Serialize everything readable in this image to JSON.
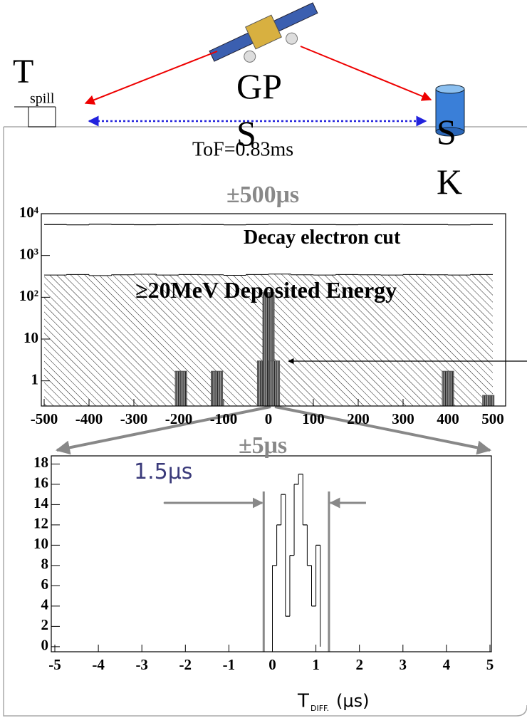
{
  "slide": {
    "t_label": "T",
    "t_subscript": "spill",
    "gps": "GPS",
    "sk": "SK",
    "tof": "ToF=0.83ms",
    "window_upper": "±500μs",
    "window_lower": "±5μs"
  },
  "chart_data": [
    {
      "type": "histogram",
      "log_y": true,
      "annotations": [
        "Decay electron cut",
        "≥20MeV Deposited Energy"
      ],
      "xlim": [
        -500,
        500
      ],
      "ylim": [
        0.25,
        10000
      ],
      "xticks": [
        -500,
        -400,
        -300,
        -200,
        -100,
        0,
        100,
        200,
        300,
        400,
        500
      ],
      "yticks": [
        1,
        10,
        {
          "value": 100,
          "label": "10²"
        },
        {
          "value": 1000,
          "label": "10³"
        },
        {
          "value": 10000,
          "label": "10⁴"
        }
      ],
      "series": [
        {
          "style": "line",
          "color": "#000000",
          "bins": [
            -500,
            -450,
            -400,
            -350,
            -300,
            -250,
            -200,
            -150,
            -100,
            -50,
            0,
            50,
            100,
            150,
            200,
            250,
            300,
            350,
            400,
            450,
            500
          ],
          "values": [
            5500,
            5400,
            5600,
            5500,
            5450,
            5500,
            5550,
            5500,
            5400,
            5500,
            5600,
            5500,
            5500,
            5450,
            5500,
            5550,
            5500,
            5500,
            5400,
            5500
          ]
        },
        {
          "style": "hatch",
          "color": "#000000",
          "bins": [
            -500,
            -450,
            -400,
            -350,
            -300,
            -250,
            -200,
            -150,
            -100,
            -50,
            0,
            50,
            100,
            150,
            200,
            250,
            300,
            350,
            400,
            450,
            500
          ],
          "values": [
            340,
            350,
            330,
            345,
            355,
            340,
            350,
            345,
            335,
            350,
            360,
            345,
            340,
            350,
            345,
            340,
            350,
            345,
            340,
            350
          ]
        },
        {
          "style": "bar",
          "color": "#555555",
          "x": [
            -195,
            -115,
            -12,
            0,
            12,
            400,
            490
          ],
          "values": [
            1.7,
            1.7,
            3,
            130,
            3,
            1.7,
            0.45
          ]
        }
      ]
    },
    {
      "type": "histogram",
      "log_y": false,
      "annotation": "1.5μs",
      "xlabel": "T",
      "xlabel_sub": "DIFF.",
      "xlabel_unit": "(μs)",
      "xlim": [
        -5,
        5
      ],
      "ylim": [
        -0.5,
        18.8
      ],
      "xticks": [
        -5,
        -4,
        -3,
        -2,
        -1,
        0,
        1,
        2,
        3,
        4,
        5
      ],
      "yticks": [
        0,
        2,
        4,
        6,
        8,
        10,
        12,
        14,
        16,
        18
      ],
      "color": "#000000",
      "bins": [
        0,
        0.1,
        0.2,
        0.3,
        0.4,
        0.5,
        0.6,
        0.7,
        0.8,
        0.9,
        1.0,
        1.1
      ],
      "values": [
        8,
        12,
        15,
        3,
        9,
        16,
        17,
        12,
        8,
        4,
        10
      ],
      "window": [
        -0.2,
        1.3
      ],
      "window_color": "#888888"
    }
  ]
}
